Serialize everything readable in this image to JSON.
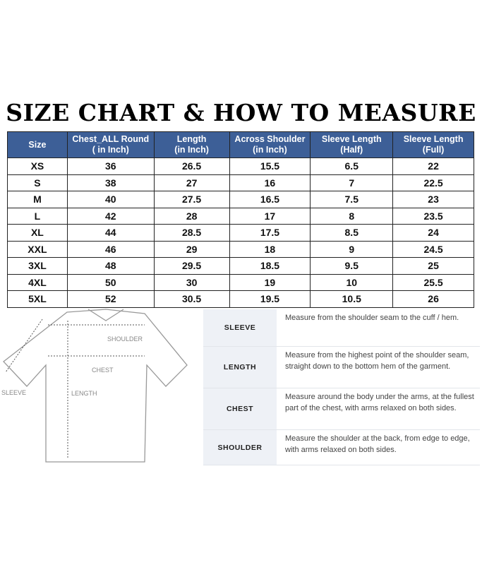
{
  "title": "SIZE CHART & HOW TO MEASURE",
  "table": {
    "headers": [
      {
        "l1": "Size",
        "l2": ""
      },
      {
        "l1": "Chest_ALL Round",
        "l2": "( in Inch)"
      },
      {
        "l1": "Length",
        "l2": "(in Inch)"
      },
      {
        "l1": "Across Shoulder",
        "l2": "(in Inch)"
      },
      {
        "l1": "Sleeve Length",
        "l2": "(Half)"
      },
      {
        "l1": "Sleeve Length",
        "l2": "(Full)"
      }
    ],
    "rows": [
      [
        "XS",
        "36",
        "26.5",
        "15.5",
        "6.5",
        "22"
      ],
      [
        "S",
        "38",
        "27",
        "16",
        "7",
        "22.5"
      ],
      [
        "M",
        "40",
        "27.5",
        "16.5",
        "7.5",
        "23"
      ],
      [
        "L",
        "42",
        "28",
        "17",
        "8",
        "23.5"
      ],
      [
        "XL",
        "44",
        "28.5",
        "17.5",
        "8.5",
        "24"
      ],
      [
        "XXL",
        "46",
        "29",
        "18",
        "9",
        "24.5"
      ],
      [
        "3XL",
        "48",
        "29.5",
        "18.5",
        "9.5",
        "25"
      ],
      [
        "4XL",
        "50",
        "30",
        "19",
        "10",
        "25.5"
      ],
      [
        "5XL",
        "52",
        "30.5",
        "19.5",
        "10.5",
        "26"
      ]
    ],
    "header_color": "#3d5f97"
  },
  "diagram": {
    "shoulder": "SHOULDER",
    "chest": "CHEST",
    "length": "LENGTH",
    "sleeve": "SLEEVE"
  },
  "guide": [
    {
      "label": "SLEEVE",
      "text": "Measure from the shoulder seam to the cuff / hem."
    },
    {
      "label": "LENGTH",
      "text": "Measure from the highest point of the shoulder seam, straight down to the bottom hem of the garment."
    },
    {
      "label": "CHEST",
      "text": "Measure around the body under the arms, at the fullest part of the chest, with arms relaxed on both sides."
    },
    {
      "label": "SHOULDER",
      "text": "Measure the shoulder at the back, from edge to edge, with arms relaxed on both sides."
    }
  ]
}
